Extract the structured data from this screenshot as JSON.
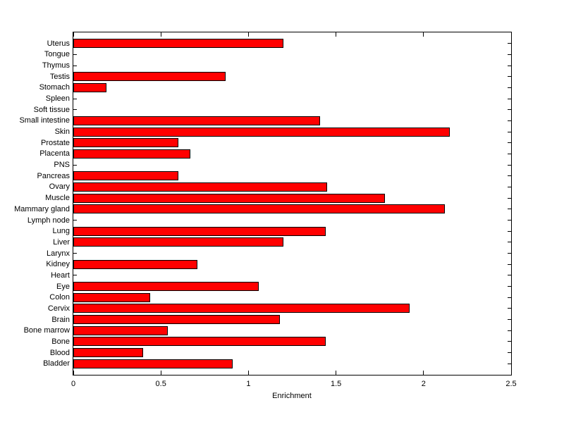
{
  "figure": {
    "background_color": "#ffffff",
    "bar_fill_color": "#ff0000",
    "bar_edge_color": "#000000",
    "axis_color": "#000000",
    "text_color": "#000000"
  },
  "chart_data": {
    "type": "bar",
    "orientation": "horizontal",
    "title": "",
    "xlabel": "Enrichment",
    "ylabel": "",
    "xlim": [
      0,
      2.5
    ],
    "xticks": [
      0,
      0.5,
      1,
      1.5,
      2,
      2.5
    ],
    "xtick_labels": [
      "0",
      "0.5",
      "1",
      "1.5",
      "2",
      "2.5"
    ],
    "grid": false,
    "legend_position": "none",
    "categories": [
      "Uterus",
      "Tongue",
      "Thymus",
      "Testis",
      "Stomach",
      "Spleen",
      "Soft tissue",
      "Small intestine",
      "Skin",
      "Prostate",
      "Placenta",
      "PNS",
      "Pancreas",
      "Ovary",
      "Muscle",
      "Mammary gland",
      "Lymph node",
      "Lung",
      "Liver",
      "Larynx",
      "Kidney",
      "Heart",
      "Eye",
      "Colon",
      "Cervix",
      "Brain",
      "Bone marrow",
      "Bone",
      "Blood",
      "Bladder"
    ],
    "values": [
      1.2,
      0,
      0,
      0.87,
      0.19,
      0,
      0,
      1.41,
      2.15,
      0.6,
      0.67,
      0,
      0.6,
      1.45,
      1.78,
      2.12,
      0,
      1.44,
      1.2,
      0,
      0.71,
      0,
      1.06,
      0.44,
      1.92,
      1.18,
      0.54,
      1.44,
      0.4,
      0.91
    ]
  }
}
